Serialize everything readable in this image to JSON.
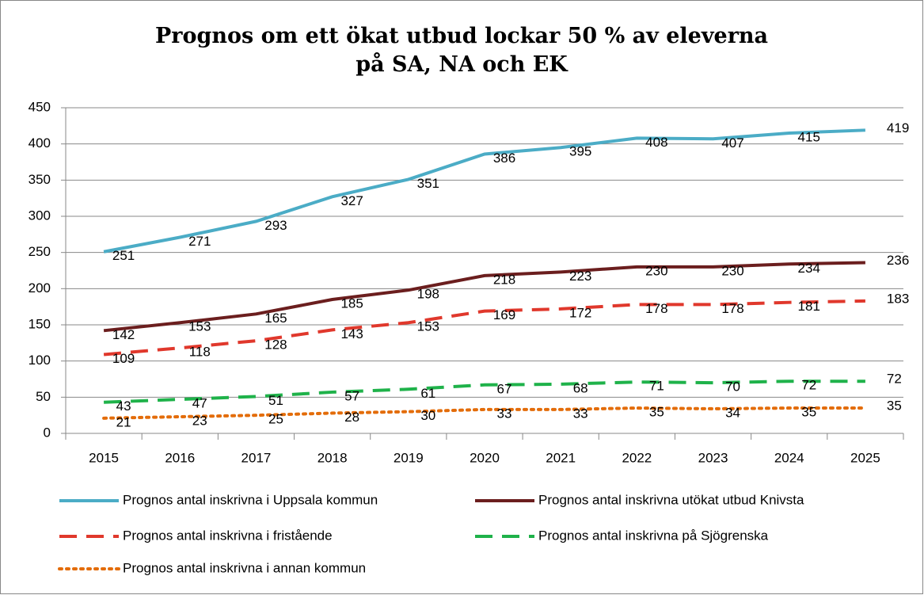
{
  "chart_data": {
    "type": "line",
    "title": "Prognos om ett ökat utbud lockar 50 % av eleverna på SA, NA och EK",
    "categories": [
      "2015",
      "2016",
      "2017",
      "2018",
      "2019",
      "2020",
      "2021",
      "2022",
      "2023",
      "2024",
      "2025"
    ],
    "series": [
      {
        "name": "Prognos antal inskrivna i Uppsala kommun",
        "color": "#4bacc6",
        "dash": "solid",
        "values": [
          251,
          271,
          293,
          327,
          351,
          386,
          395,
          408,
          407,
          415,
          419
        ]
      },
      {
        "name": "Prognos antal inskrivna utökat utbud Knivsta",
        "color": "#6b1e1e",
        "dash": "solid",
        "values": [
          142,
          153,
          165,
          185,
          198,
          218,
          223,
          230,
          230,
          234,
          236
        ]
      },
      {
        "name": "Prognos antal inskrivna i fristående",
        "color": "#e0382c",
        "dash": "dashed",
        "values": [
          109,
          118,
          128,
          143,
          153,
          169,
          172,
          178,
          178,
          181,
          183
        ]
      },
      {
        "name": "Prognos antal inskrivna på Sjögrenska",
        "color": "#1fb24a",
        "dash": "dashed",
        "values": [
          43,
          47,
          51,
          57,
          61,
          67,
          68,
          71,
          70,
          72,
          72
        ]
      },
      {
        "name": "Prognos antal inskrivna i annan kommun",
        "color": "#e36c09",
        "dash": "dotted",
        "values": [
          21,
          23,
          25,
          28,
          30,
          33,
          33,
          35,
          34,
          35,
          35
        ]
      }
    ],
    "ylim": [
      0,
      450
    ],
    "yticks": [
      0,
      50,
      100,
      150,
      200,
      250,
      300,
      350,
      400,
      450
    ],
    "grid": true
  }
}
